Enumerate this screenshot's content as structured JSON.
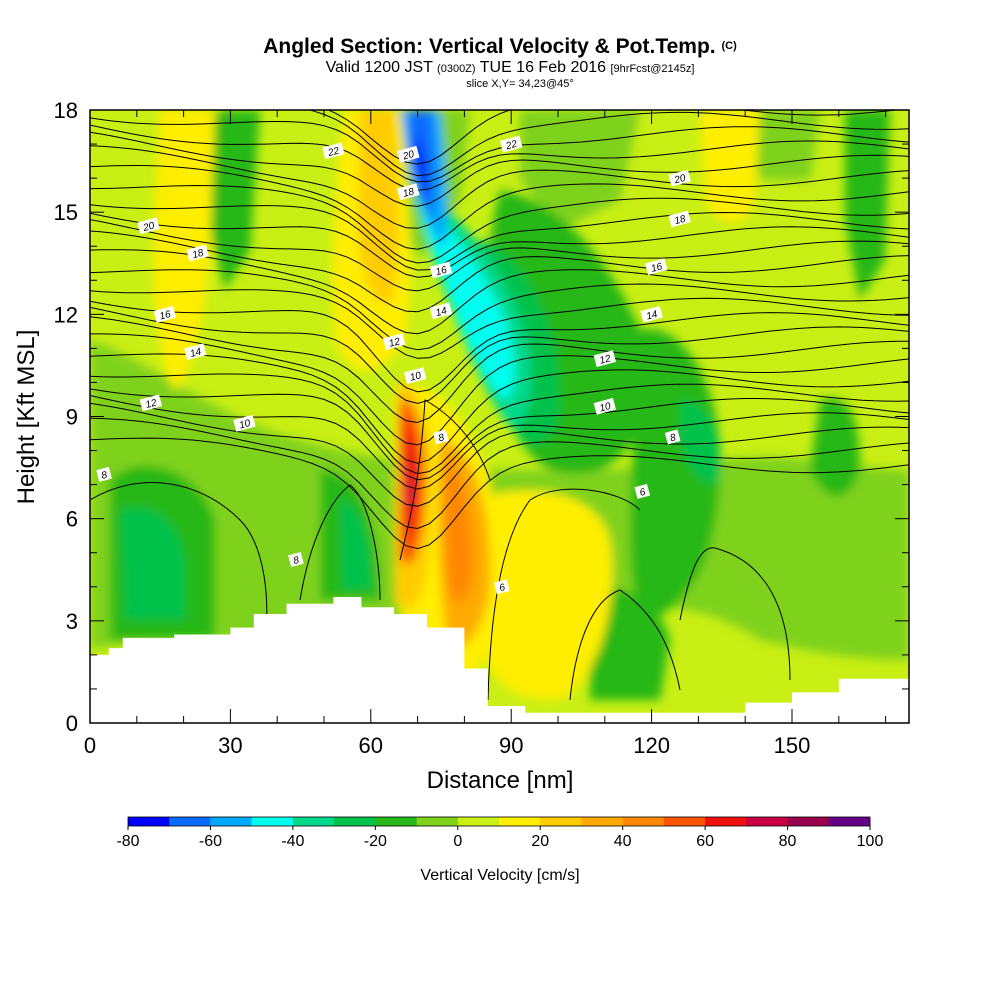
{
  "header": {
    "title": "Angled Section: Vertical Velocity & Pot.Temp.",
    "title_unit": "(C)",
    "valid_prefix": "Valid 1200 JST",
    "valid_utc": "(0300Z)",
    "valid_date": "TUE 16 Feb 2016",
    "forecast": "[9hrFcst@2145z]",
    "slice": "slice X,Y= 34,23@45°"
  },
  "chart_data": {
    "type": "heatmap",
    "xlabel": "Distance [nm]",
    "ylabel": "Height [Kft MSL]",
    "xlim": [
      0,
      175
    ],
    "ylim": [
      0,
      18
    ],
    "x_ticks": [
      0,
      30,
      60,
      90,
      120,
      150
    ],
    "y_ticks": [
      0,
      3,
      6,
      9,
      12,
      15,
      18
    ],
    "colorbar": {
      "label": "Vertical Velocity [cm/s]",
      "tick_labels": [
        "-80",
        "-60",
        "-40",
        "-20",
        "0",
        "20",
        "40",
        "60",
        "80",
        "100"
      ],
      "tick_values": [
        -80,
        -60,
        -40,
        -20,
        0,
        20,
        40,
        60,
        80,
        100
      ],
      "levels": [
        -80,
        -70,
        -60,
        -50,
        -40,
        -30,
        -20,
        -10,
        0,
        10,
        20,
        30,
        40,
        50,
        60,
        70,
        80,
        90,
        100
      ],
      "colors": [
        "#0000ff",
        "#0a6cff",
        "#00aaff",
        "#00ffee",
        "#00d98c",
        "#00c24c",
        "#26b818",
        "#7fd21a",
        "#c9ef14",
        "#ffee00",
        "#ffcc00",
        "#ffaa00",
        "#ff8800",
        "#ff5500",
        "#ee1010",
        "#cc0044",
        "#99004d",
        "#660088"
      ]
    },
    "terrain": [
      [
        0,
        2.0
      ],
      [
        4,
        2.2
      ],
      [
        7,
        2.5
      ],
      [
        18,
        2.6
      ],
      [
        30,
        2.8
      ],
      [
        35,
        3.2
      ],
      [
        42,
        3.5
      ],
      [
        52,
        3.7
      ],
      [
        58,
        3.4
      ],
      [
        65,
        3.2
      ],
      [
        72,
        2.8
      ],
      [
        80,
        1.6
      ],
      [
        85,
        0.5
      ],
      [
        93,
        0.3
      ],
      [
        130,
        0.3
      ],
      [
        140,
        0.6
      ],
      [
        150,
        0.9
      ],
      [
        160,
        1.3
      ],
      [
        175,
        1.6
      ]
    ],
    "contour_labels": [
      {
        "x": 52,
        "y": 16.8,
        "text": "22"
      },
      {
        "x": 90,
        "y": 17.0,
        "text": "22"
      },
      {
        "x": 68,
        "y": 16.7,
        "text": "20"
      },
      {
        "x": 12.5,
        "y": 14.6,
        "text": "20"
      },
      {
        "x": 126,
        "y": 16.0,
        "text": "20"
      },
      {
        "x": 68,
        "y": 15.6,
        "text": "18"
      },
      {
        "x": 23,
        "y": 13.8,
        "text": "18"
      },
      {
        "x": 126,
        "y": 14.8,
        "text": "18"
      },
      {
        "x": 75,
        "y": 13.3,
        "text": "16"
      },
      {
        "x": 16,
        "y": 12.0,
        "text": "16"
      },
      {
        "x": 121,
        "y": 13.4,
        "text": "16"
      },
      {
        "x": 75,
        "y": 12.1,
        "text": "14"
      },
      {
        "x": 22.5,
        "y": 10.9,
        "text": "14"
      },
      {
        "x": 120,
        "y": 12.0,
        "text": "14"
      },
      {
        "x": 65,
        "y": 11.2,
        "text": "12"
      },
      {
        "x": 13,
        "y": 9.4,
        "text": "12"
      },
      {
        "x": 110,
        "y": 10.7,
        "text": "12"
      },
      {
        "x": 69.5,
        "y": 10.2,
        "text": "10"
      },
      {
        "x": 33,
        "y": 8.8,
        "text": "10"
      },
      {
        "x": 110,
        "y": 9.3,
        "text": "10"
      },
      {
        "x": 75,
        "y": 8.4,
        "text": "8"
      },
      {
        "x": 3,
        "y": 7.3,
        "text": "8"
      },
      {
        "x": 124.5,
        "y": 8.4,
        "text": "8"
      },
      {
        "x": 44,
        "y": 4.8,
        "text": "8"
      },
      {
        "x": 118,
        "y": 6.8,
        "text": "6"
      },
      {
        "x": 88,
        "y": 4.0,
        "text": "6"
      }
    ]
  }
}
